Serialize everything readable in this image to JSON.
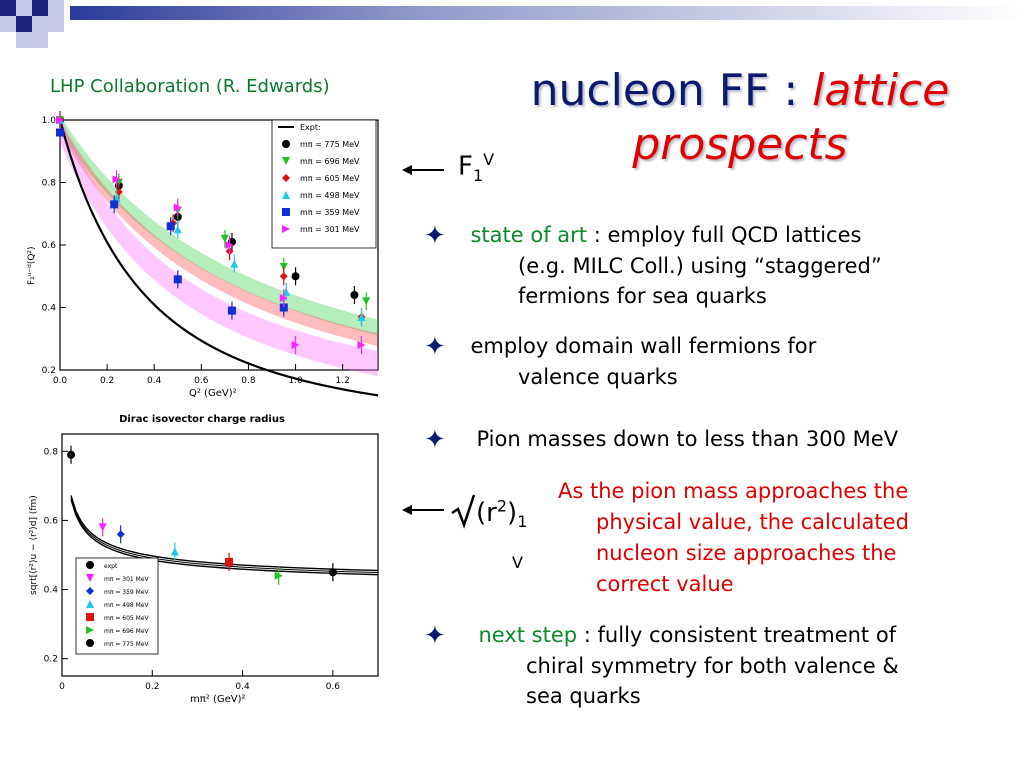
{
  "credit": "LHP Collaboration (R. Edwards)",
  "title": {
    "main": "nucleon FF :",
    "accent": "lattice prospects"
  },
  "colors": {
    "title": "#0c1a6e",
    "accent": "#e00000",
    "green": "#0a8a2a"
  },
  "labels": {
    "f1v_base": "F",
    "f1v_sub": "1",
    "f1v_sup": "V",
    "radius_open": "(r",
    "radius_sup": "2",
    "radius_close": ")",
    "radius_sub": "1",
    "radius_v": "V"
  },
  "bullets": [
    {
      "icon": "star-bullet-icon",
      "lead": "state of art",
      "rest": " : employ full QCD lattices",
      "cont": [
        "(e.g. MILC Coll.) using “staggered”",
        "fermions for sea quarks"
      ]
    },
    {
      "icon": "star-bullet-icon",
      "lead": "",
      "rest": "employ domain wall fermions for",
      "cont": [
        "valence quarks"
      ]
    },
    {
      "icon": "star-bullet-icon",
      "lead": "",
      "rest": "Pion masses down to less than 300 MeV",
      "cont": []
    },
    {
      "icon": "star-bullet-icon",
      "lead": "next step",
      "rest": " : fully consistent treatment of",
      "cont": [
        "chiral symmetry for both valence &",
        "sea quarks"
      ]
    }
  ],
  "note": [
    "As the pion mass approaches the",
    "physical value, the calculated",
    "nucleon size approaches the",
    "correct value"
  ],
  "chart_data": [
    {
      "type": "scatter",
      "xlabel": "Q² (GeV)²",
      "ylabel": "F₁ᵘ⁻ᵈ(Q²)",
      "xlim": [
        0,
        1.35
      ],
      "ylim": [
        0.2,
        1.0
      ],
      "xticks": [
        "0.0",
        "0.2",
        "0.4",
        "0.6",
        "0.8",
        "1.0",
        "1.2"
      ],
      "yticks": [
        "0.2",
        "0.4",
        "0.6",
        "0.8",
        "1.0"
      ],
      "caption": "Dirac isovector charge radius",
      "legend": [
        "Expt:",
        "mπ = 775 MeV",
        "mπ = 696 MeV",
        "mπ = 605 MeV",
        "mπ = 498 MeV",
        "mπ = 359 MeV",
        "mπ = 301 MeV"
      ],
      "series": [
        {
          "name": "mπ = 775 MeV",
          "color": "#000000",
          "points": [
            [
              0,
              1.0
            ],
            [
              0.25,
              0.79
            ],
            [
              0.5,
              0.69
            ],
            [
              0.73,
              0.61
            ],
            [
              1.0,
              0.5
            ],
            [
              1.25,
              0.44
            ]
          ]
        },
        {
          "name": "mπ = 696 MeV",
          "color": "#1fc21f",
          "points": [
            [
              0,
              1.0
            ],
            [
              0.25,
              0.8
            ],
            [
              0.5,
              0.71
            ],
            [
              0.7,
              0.62
            ],
            [
              0.95,
              0.53
            ],
            [
              1.3,
              0.42
            ]
          ]
        },
        {
          "name": "mπ = 605 MeV",
          "color": "#e01010",
          "points": [
            [
              0,
              1.0
            ],
            [
              0.25,
              0.77
            ],
            [
              0.48,
              0.67
            ],
            [
              0.72,
              0.58
            ],
            [
              0.95,
              0.5
            ],
            [
              1.28,
              0.37
            ]
          ]
        },
        {
          "name": "mπ = 498 MeV",
          "color": "#20c8e8",
          "points": [
            [
              0,
              1.0
            ],
            [
              0.24,
              0.75
            ],
            [
              0.5,
              0.65
            ],
            [
              0.74,
              0.54
            ],
            [
              0.96,
              0.45
            ],
            [
              1.28,
              0.37
            ]
          ]
        },
        {
          "name": "mπ = 359 MeV",
          "color": "#1030d0",
          "points": [
            [
              0,
              0.96
            ],
            [
              0.23,
              0.73
            ],
            [
              0.47,
              0.66
            ],
            [
              0.5,
              0.49
            ],
            [
              0.73,
              0.39
            ],
            [
              0.95,
              0.4
            ]
          ]
        },
        {
          "name": "mπ = 301 MeV",
          "color": "#ff20ff",
          "points": [
            [
              0,
              1.0
            ],
            [
              0.24,
              0.81
            ],
            [
              0.5,
              0.72
            ],
            [
              0.72,
              0.6
            ],
            [
              0.95,
              0.43
            ],
            [
              1.0,
              0.28
            ],
            [
              1.28,
              0.28
            ]
          ]
        }
      ]
    },
    {
      "type": "scatter",
      "xlabel": "mπ² (GeV)²",
      "ylabel": "sqrt[⟨r²⟩u − ⟨r²⟩d] (fm)",
      "xlim": [
        0,
        0.7
      ],
      "ylim": [
        0.15,
        0.85
      ],
      "xticks": [
        "0",
        "0.2",
        "0.4",
        "0.6"
      ],
      "yticks": [
        "0.2",
        "0.4",
        "0.6",
        "0.8"
      ],
      "legend": [
        "expt",
        "mπ = 301 MeV",
        "mπ = 359 MeV",
        "mπ = 498 MeV",
        "mπ = 605 MeV",
        "mπ = 696 MeV",
        "mπ = 775 MeV"
      ],
      "series": [
        {
          "name": "expt",
          "color": "#000000",
          "points": [
            [
              0.02,
              0.79
            ]
          ]
        },
        {
          "name": "mπ = 301 MeV",
          "color": "#ff20ff",
          "points": [
            [
              0.09,
              0.58
            ]
          ]
        },
        {
          "name": "mπ = 359 MeV",
          "color": "#1030d0",
          "points": [
            [
              0.13,
              0.56
            ]
          ]
        },
        {
          "name": "mπ = 498 MeV",
          "color": "#20c8e8",
          "points": [
            [
              0.25,
              0.51
            ]
          ]
        },
        {
          "name": "mπ = 605 MeV",
          "color": "#e01010",
          "points": [
            [
              0.37,
              0.48
            ]
          ]
        },
        {
          "name": "mπ = 696 MeV",
          "color": "#1fc21f",
          "points": [
            [
              0.48,
              0.44
            ]
          ]
        },
        {
          "name": "mπ = 775 MeV",
          "color": "#000000",
          "points": [
            [
              0.6,
              0.45
            ]
          ]
        }
      ]
    }
  ]
}
